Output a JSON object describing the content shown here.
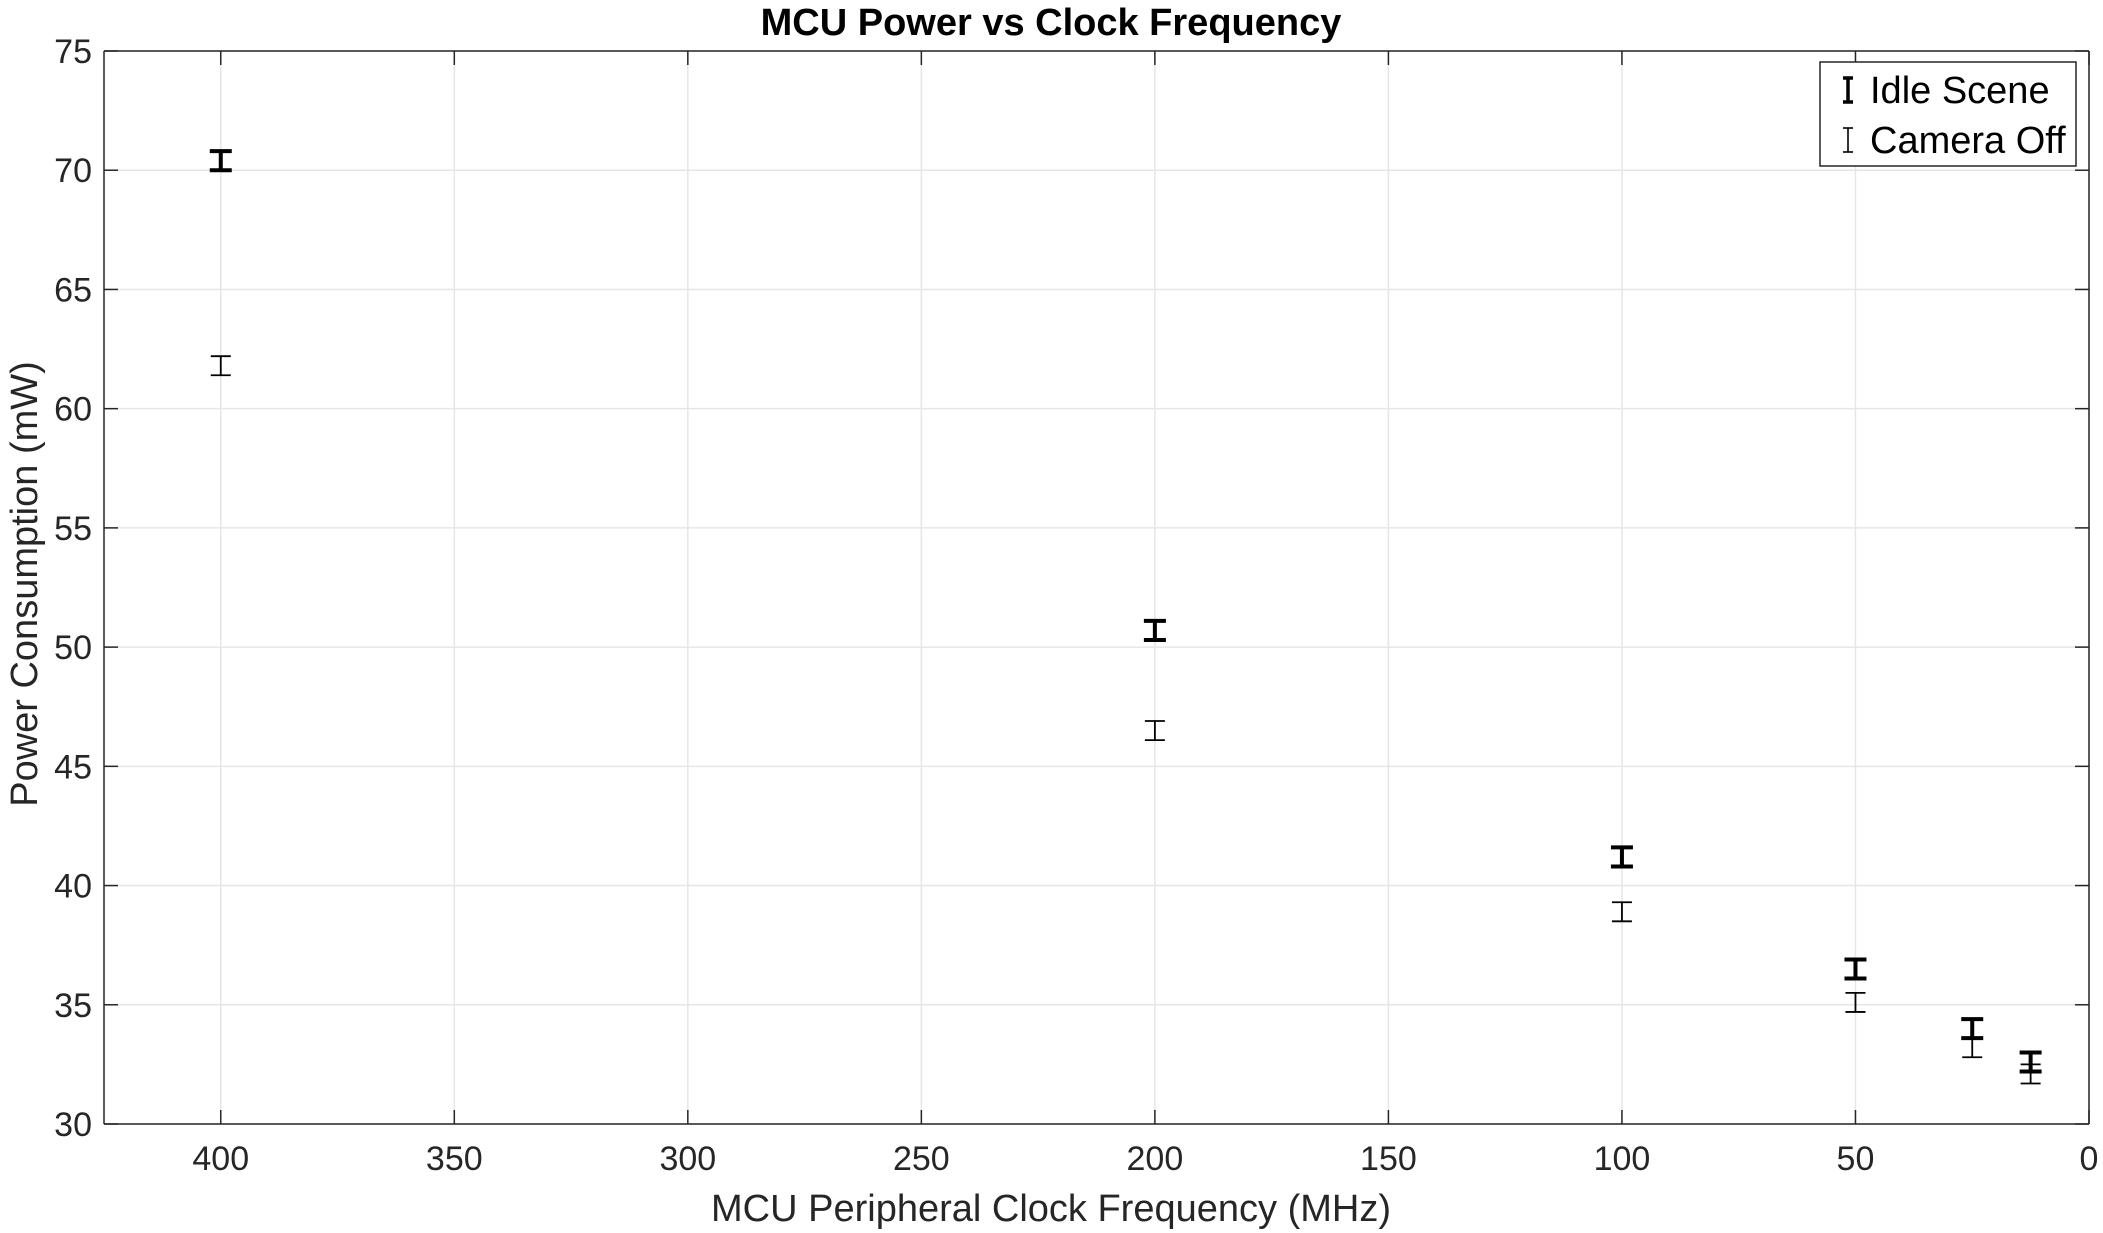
{
  "chart_data": {
    "type": "errorbar",
    "title": "MCU Power vs Clock Frequency",
    "xlabel": "MCU Peripheral Clock Frequency (MHz)",
    "ylabel": "Power Consumption (mW)",
    "xlim": [
      425,
      0
    ],
    "ylim": [
      30,
      75
    ],
    "x_reversed": true,
    "xticks": [
      "400",
      "350",
      "300",
      "250",
      "200",
      "150",
      "100",
      "50",
      "0"
    ],
    "yticks": [
      "30",
      "35",
      "40",
      "45",
      "50",
      "55",
      "60",
      "65",
      "70",
      "75"
    ],
    "grid": true,
    "legend_position": "top-right",
    "series": [
      {
        "name": "Idle Scene",
        "style": "thick",
        "x": [
          400,
          200,
          100,
          50,
          25,
          12.5
        ],
        "y": [
          70.4,
          50.7,
          41.2,
          36.5,
          34.0,
          32.6
        ],
        "err": [
          0.4,
          0.4,
          0.4,
          0.4,
          0.4,
          0.4
        ]
      },
      {
        "name": "Camera Off",
        "style": "thin",
        "x": [
          400,
          200,
          100,
          50,
          25,
          12.5
        ],
        "y": [
          61.8,
          46.5,
          38.9,
          35.1,
          33.2,
          32.1
        ],
        "err": [
          0.4,
          0.4,
          0.4,
          0.4,
          0.4,
          0.4
        ]
      }
    ],
    "colors": {
      "grid": "#e6e6e6",
      "axis": "#262626",
      "series": "#000000"
    }
  }
}
